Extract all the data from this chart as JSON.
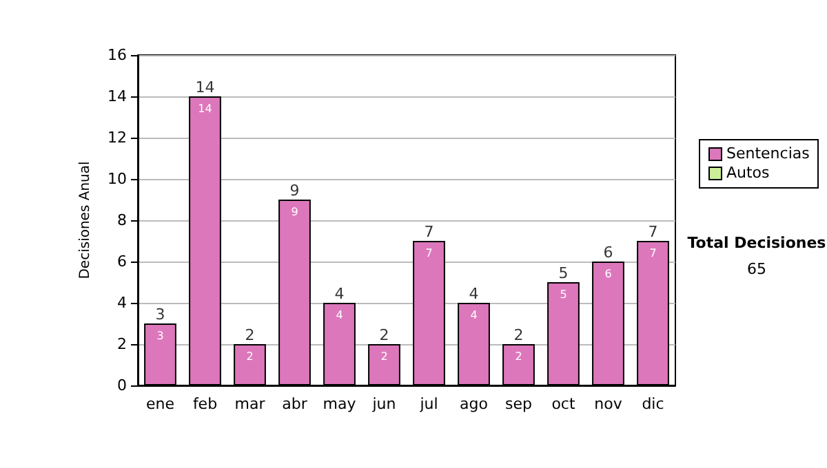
{
  "chart_data": {
    "type": "bar",
    "ylabel": "Decisiones Anual",
    "categories": [
      "ene",
      "feb",
      "mar",
      "abr",
      "may",
      "jun",
      "jul",
      "ago",
      "sep",
      "oct",
      "nov",
      "dic"
    ],
    "series": [
      {
        "name": "Sentencias",
        "color": "#dd77bb",
        "values": [
          3,
          14,
          2,
          9,
          4,
          2,
          7,
          4,
          2,
          5,
          6,
          7
        ]
      },
      {
        "name": "Autos",
        "color": "#ccee99",
        "values": [
          null,
          null,
          null,
          null,
          null,
          null,
          null,
          null,
          null,
          null,
          null,
          null
        ]
      }
    ],
    "stacked": true,
    "data_labels": true,
    "totals": [
      "3",
      "14",
      "2",
      "9",
      "4",
      "2",
      "7",
      "4",
      "2",
      "5",
      "6",
      "7"
    ],
    "ylim": [
      0,
      16
    ],
    "yticks": [
      0,
      2,
      4,
      6,
      8,
      10,
      12,
      14,
      16
    ],
    "grid": "y",
    "legend": "right",
    "annotations": [
      "Total Decisiones",
      "65"
    ]
  }
}
